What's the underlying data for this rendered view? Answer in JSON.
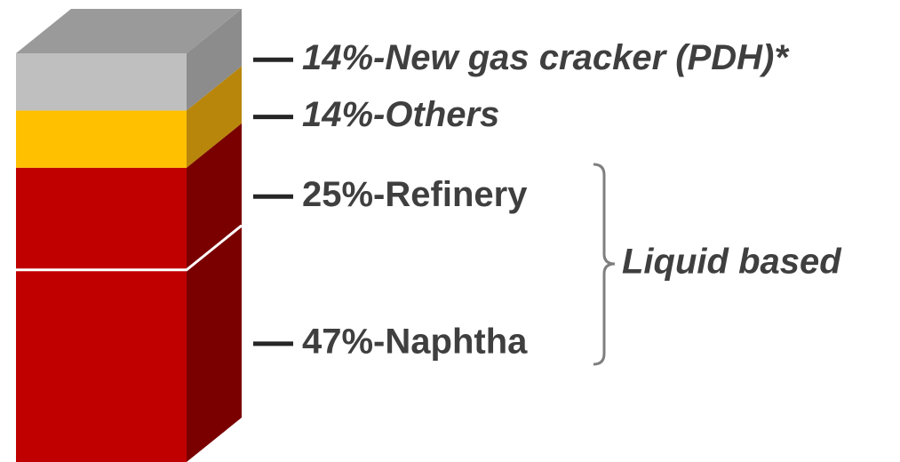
{
  "chart_data": {
    "type": "stacked_bar_3d",
    "ylim": [
      0,
      100
    ],
    "series": [
      {
        "color": "#c00000",
        "side_color": "#7a0000",
        "values": [
          47
        ],
        "value_labels": [
          "47%-Naphtha"
        ]
      },
      {
        "color": "#c00000",
        "side_color": "#7a0000",
        "values": [
          25
        ],
        "value_labels": [
          "25%-Refinery"
        ]
      },
      {
        "color": "#ffc000",
        "side_color": "#b8860b",
        "values": [
          14
        ],
        "value_labels": [
          "14%-Others"
        ]
      },
      {
        "color": "#bfbfbf",
        "side_color": "#8c8c8c",
        "values": [
          14
        ],
        "value_labels": [
          "14%-New gas cracker (PDH)*"
        ]
      }
    ],
    "annotations": [
      "Liquid based"
    ]
  }
}
